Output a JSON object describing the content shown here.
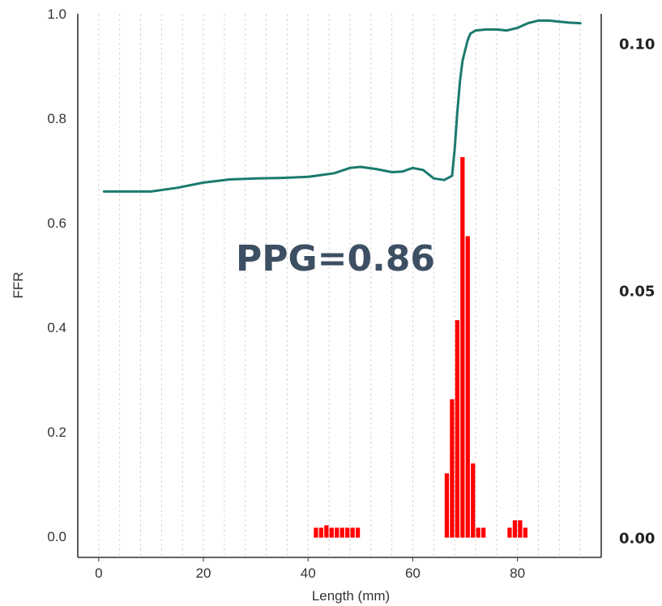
{
  "chart_data": {
    "type": "line",
    "xlabel": "Length (mm)",
    "ylabel": "FFR",
    "xlim": [
      -4,
      96
    ],
    "ylim": [
      -0.04,
      1.0
    ],
    "y2lim": [
      -0.004,
      0.106
    ],
    "x_ticks": [
      "0",
      "20",
      "40",
      "60",
      "80"
    ],
    "x_tick_values": [
      0,
      20,
      40,
      60,
      80
    ],
    "y_ticks": [
      "0.0",
      "0.2",
      "0.4",
      "0.6",
      "0.8",
      "1.0"
    ],
    "y_tick_values": [
      0.0,
      0.2,
      0.4,
      0.6,
      0.8,
      1.0
    ],
    "y2_ticks": [
      "0.00",
      "0.05",
      "0.10"
    ],
    "y2_tick_values": [
      0.0,
      0.05,
      0.1
    ],
    "grid": "vertical dashed",
    "annotation": "PPG=0.86",
    "annotation_color": "#3d4f63",
    "series": [
      {
        "kind": "line",
        "axis": "left",
        "color": "#1a7a6e",
        "x": [
          1,
          5,
          10,
          15,
          20,
          25,
          30,
          35,
          40,
          45,
          48,
          50,
          53,
          56,
          58,
          60,
          62,
          64,
          66,
          67.5,
          68,
          68.5,
          69,
          69.5,
          70,
          70.5,
          71,
          72,
          74,
          76,
          78,
          80,
          82,
          84,
          86,
          88,
          90,
          92
        ],
        "y": [
          0.66,
          0.66,
          0.66,
          0.667,
          0.677,
          0.683,
          0.685,
          0.686,
          0.688,
          0.695,
          0.705,
          0.707,
          0.703,
          0.697,
          0.698,
          0.705,
          0.701,
          0.685,
          0.682,
          0.69,
          0.74,
          0.81,
          0.87,
          0.91,
          0.93,
          0.95,
          0.962,
          0.968,
          0.97,
          0.97,
          0.968,
          0.973,
          0.982,
          0.987,
          0.987,
          0.985,
          0.983,
          0.982
        ]
      },
      {
        "kind": "bar",
        "axis": "right",
        "color": "#ff0000",
        "bin_width": 1.0,
        "x": [
          41,
          42,
          43,
          44,
          45,
          46,
          47,
          48,
          49,
          66,
          67,
          68,
          69,
          70,
          71,
          72,
          73,
          78,
          79,
          80,
          81
        ],
        "values": [
          0.002,
          0.002,
          0.0025,
          0.002,
          0.002,
          0.002,
          0.002,
          0.002,
          0.002,
          0.013,
          0.028,
          0.044,
          0.077,
          0.061,
          0.015,
          0.002,
          0.002,
          0.002,
          0.0035,
          0.0035,
          0.002
        ]
      }
    ]
  }
}
